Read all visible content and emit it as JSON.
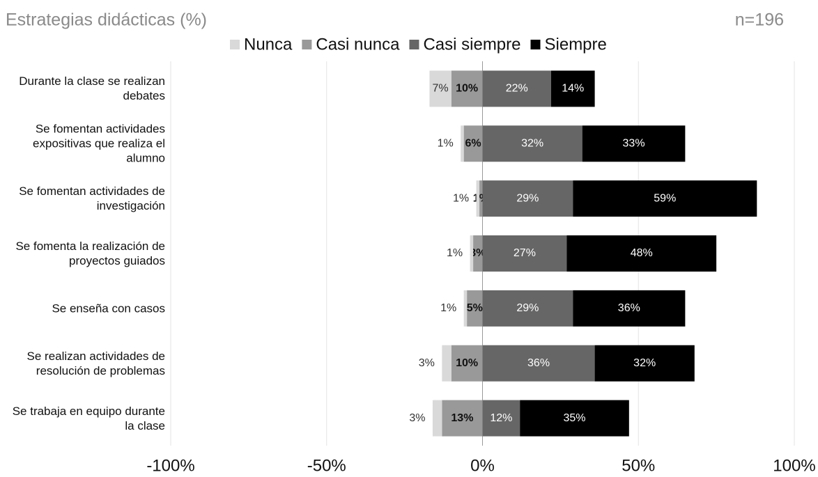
{
  "chart_data": {
    "type": "diverging_bar",
    "title": "Estrategias didácticas (%)",
    "annotation": "n=196",
    "categories": [
      "Durante la clase se realizan debates",
      "Se fomentan actividades expositivas que realiza el alumno",
      "Se fomentan actividades de investigación",
      "Se fomenta la realización de proyectos guiados",
      "Se enseña con casos",
      "Se realizan actividades de resolución de problemas",
      "Se trabaja en equipo durante la clase"
    ],
    "series": [
      {
        "name": "Nunca",
        "color": "#d9d9d9",
        "side": "negative",
        "values": [
          7,
          1,
          1,
          1,
          1,
          3,
          3
        ],
        "value_labels": [
          "7%",
          "1%",
          "1%",
          "1%",
          "1%",
          "3%",
          "3%"
        ]
      },
      {
        "name": "Casi nunca",
        "color": "#999999",
        "side": "negative",
        "values": [
          10,
          6,
          1,
          3,
          5,
          10,
          13
        ],
        "value_labels": [
          "10%",
          "6%",
          "1%",
          "3%",
          "5%",
          "10%",
          "13%"
        ]
      },
      {
        "name": "Casi siempre",
        "color": "#666666",
        "side": "positive",
        "values": [
          22,
          32,
          29,
          27,
          29,
          36,
          12
        ],
        "value_labels": [
          "22%",
          "32%",
          "29%",
          "27%",
          "29%",
          "36%",
          "12%"
        ]
      },
      {
        "name": "Siempre",
        "color": "#000000",
        "side": "positive",
        "values": [
          14,
          33,
          59,
          48,
          36,
          32,
          35
        ],
        "value_labels": [
          "14%",
          "33%",
          "59%",
          "48%",
          "36%",
          "32%",
          "35%"
        ]
      }
    ],
    "xlim": [
      -100,
      100
    ],
    "xticks": [
      {
        "value": -100,
        "label": "-100%"
      },
      {
        "value": -50,
        "label": "-50%"
      },
      {
        "value": 0,
        "label": "0%"
      },
      {
        "value": 50,
        "label": "50%"
      },
      {
        "value": 100,
        "label": "100%"
      }
    ],
    "grid": true,
    "legend": "top"
  }
}
